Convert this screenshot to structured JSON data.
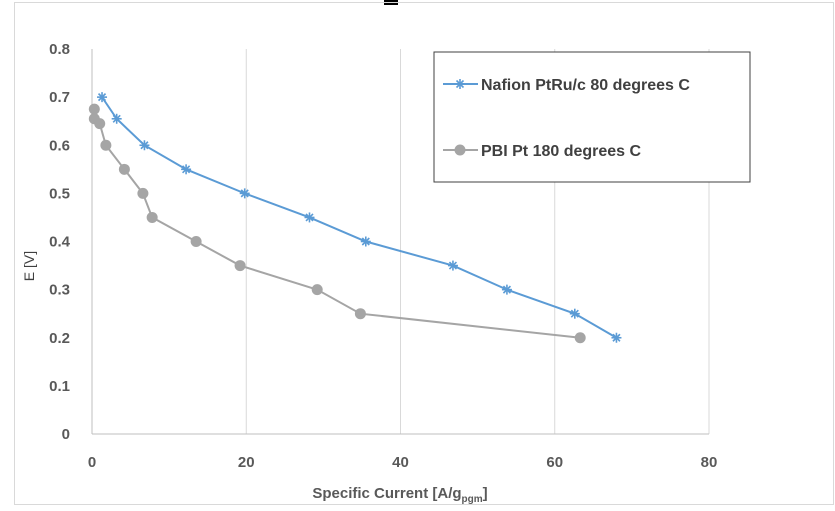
{
  "chart_data": {
    "type": "line",
    "title": "",
    "xlabel": "Specific Current [A/g pgm]",
    "xlabel_main": "Specific Current [A/g",
    "xlabel_sub": "pgm",
    "xlabel_close": "]",
    "ylabel": "E [V]",
    "xlim": [
      0,
      80
    ],
    "ylim": [
      0,
      0.8
    ],
    "x_ticks": [
      0,
      20,
      40,
      60,
      80
    ],
    "x_tick_labels": [
      "0",
      "20",
      "40",
      "60",
      "80"
    ],
    "y_ticks": [
      0,
      0.1,
      0.2,
      0.3,
      0.4,
      0.5,
      0.6,
      0.7,
      0.8
    ],
    "y_tick_labels": [
      "0",
      "0.1",
      "0.2",
      "0.3",
      "0.4",
      "0.5",
      "0.6",
      "0.7",
      "0.8"
    ],
    "grid": "vertical",
    "legend_position": "top-right",
    "series": [
      {
        "name": "Nafion PtRu/c 80 degrees C",
        "color": "#5b9bd5",
        "marker": "asterisk",
        "x": [
          1.3,
          3.2,
          6.8,
          12.2,
          19.8,
          28.2,
          35.5,
          46.8,
          53.8,
          62.6,
          68.0
        ],
        "y": [
          0.7,
          0.655,
          0.6,
          0.55,
          0.5,
          0.45,
          0.4,
          0.35,
          0.3,
          0.25,
          0.2
        ]
      },
      {
        "name": "PBI Pt 180 degrees C",
        "color": "#a5a5a5",
        "marker": "circle",
        "x": [
          0.3,
          0.3,
          1.0,
          1.8,
          4.2,
          6.6,
          7.8,
          13.5,
          19.2,
          29.2,
          34.8,
          63.3
        ],
        "y": [
          0.675,
          0.655,
          0.645,
          0.6,
          0.55,
          0.5,
          0.45,
          0.4,
          0.35,
          0.3,
          0.25,
          0.2
        ]
      }
    ]
  }
}
